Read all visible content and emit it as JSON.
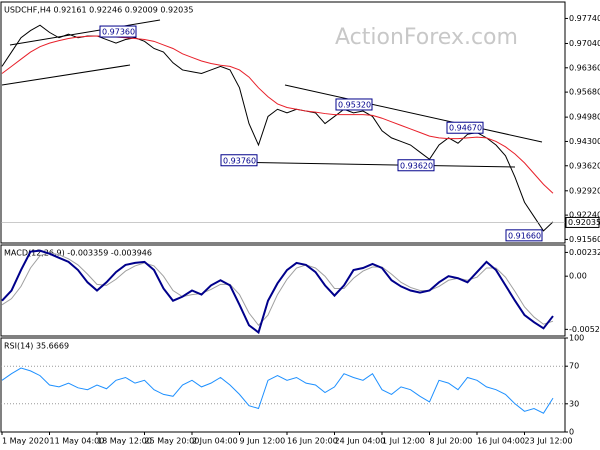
{
  "watermark": "ActionForex.com",
  "chart_data": [
    {
      "type": "line",
      "title": "USDCHF,H4  0.92161 0.92246 0.92009 0.92035",
      "ylim": [
        0.9146,
        0.982
      ],
      "yticks": [
        {
          "value": 0.9774,
          "label": "0.97740"
        },
        {
          "value": 0.9704,
          "label": "0.97040"
        },
        {
          "value": 0.9636,
          "label": "0.96360"
        },
        {
          "value": 0.9568,
          "label": "0.95680"
        },
        {
          "value": 0.9498,
          "label": "0.94980"
        },
        {
          "value": 0.943,
          "label": "0.94300"
        },
        {
          "value": 0.9362,
          "label": "0.93620"
        },
        {
          "value": 0.9292,
          "label": "0.92920"
        },
        {
          "value": 0.9224,
          "label": "0.92240"
        },
        {
          "value": 0.9156,
          "label": "0.91560"
        }
      ],
      "last_price": {
        "value": 0.92035,
        "label": "0.92035"
      },
      "annotations": [
        {
          "value": 0.9736,
          "label": "0.97360"
        },
        {
          "value": 0.9532,
          "label": "0.95320"
        },
        {
          "value": 0.9467,
          "label": "0.94670"
        },
        {
          "value": 0.9376,
          "label": "0.93760"
        },
        {
          "value": 0.9362,
          "label": "0.93620"
        },
        {
          "value": 0.9166,
          "label": "0.91660"
        }
      ],
      "series": [
        {
          "color": "#000000",
          "width": 1,
          "values": [
            0.964,
            0.968,
            0.972,
            0.974,
            0.9755,
            0.9735,
            0.972,
            0.973,
            0.972,
            0.9725,
            0.9725,
            0.9715,
            0.9705,
            0.9715,
            0.972,
            0.971,
            0.969,
            0.968,
            0.965,
            0.963,
            0.9625,
            0.962,
            0.963,
            0.964,
            0.963,
            0.958,
            0.948,
            0.942,
            0.95,
            0.952,
            0.951,
            0.952,
            0.9515,
            0.951,
            0.948,
            0.95,
            0.952,
            0.951,
            0.9515,
            0.95,
            0.946,
            0.944,
            0.943,
            0.942,
            0.94,
            0.938,
            0.942,
            0.944,
            0.9425,
            0.945,
            0.9455,
            0.944,
            0.942,
            0.939,
            0.933,
            0.926,
            0.922,
            0.918,
            0.9205
          ]
        },
        {
          "color": "#e8202a",
          "width": 1,
          "values": [
            0.962,
            0.964,
            0.966,
            0.968,
            0.9695,
            0.9705,
            0.9712,
            0.9718,
            0.9722,
            0.9724,
            0.9725,
            0.9724,
            0.9722,
            0.972,
            0.9718,
            0.9715,
            0.971,
            0.97,
            0.969,
            0.9675,
            0.9665,
            0.9655,
            0.9648,
            0.9643,
            0.964,
            0.963,
            0.961,
            0.958,
            0.9555,
            0.9535,
            0.9525,
            0.952,
            0.9515,
            0.9512,
            0.9508,
            0.9505,
            0.9505,
            0.9505,
            0.9505,
            0.9503,
            0.9495,
            0.9485,
            0.9475,
            0.9465,
            0.9455,
            0.9445,
            0.944,
            0.9438,
            0.9438,
            0.944,
            0.9442,
            0.944,
            0.943,
            0.9415,
            0.9395,
            0.937,
            0.934,
            0.931,
            0.9285
          ]
        }
      ]
    },
    {
      "type": "line",
      "title": "MACD(12,26,9) -0.003359 -0.003946",
      "ylim": [
        -0.00585,
        0.00305
      ],
      "yticks": [
        0.002325,
        {
          "value": 0,
          "label": "0.00"
        },
        -0.005201
      ],
      "series": [
        {
          "color": "#a0a0a0",
          "width": 1,
          "values": [
            -0.0028,
            -0.0022,
            -0.001,
            0.0008,
            0.002,
            0.0023,
            0.0021,
            0.0017,
            0.0011,
            0.0002,
            -0.0008,
            -0.0009,
            -0.0003,
            0.0005,
            0.001,
            0.0013,
            0.001,
            0.0,
            -0.0014,
            -0.002,
            -0.0018,
            -0.0017,
            -0.0013,
            -0.0008,
            -0.0008,
            -0.0018,
            -0.0036,
            -0.0048,
            -0.0038,
            -0.0018,
            -0.0003,
            0.0008,
            0.0011,
            0.0008,
            0.0,
            -0.0012,
            -0.0012,
            -0.0002,
            0.0005,
            0.0009,
            0.0009,
            0.0002,
            -0.0006,
            -0.0011,
            -0.0014,
            -0.0014,
            -0.001,
            -0.0004,
            -0.0002,
            -0.0004,
            -0.0001,
            0.0008,
            0.0008,
            -0.0001,
            -0.0015,
            -0.003,
            -0.004,
            -0.0047,
            -0.0044
          ]
        },
        {
          "color": "#00008b",
          "width": 2,
          "values": [
            -0.0024,
            -0.0014,
            0.0006,
            0.0024,
            0.0025,
            0.0022,
            0.0018,
            0.0014,
            0.0006,
            -0.0006,
            -0.0014,
            -0.0006,
            0.0004,
            0.0011,
            0.0013,
            0.0014,
            0.0006,
            -0.0012,
            -0.0024,
            -0.002,
            -0.0014,
            -0.0018,
            -0.0009,
            -0.0004,
            -0.0009,
            -0.0028,
            -0.0048,
            -0.0055,
            -0.0024,
            -0.0007,
            0.0006,
            0.0013,
            0.0011,
            0.0004,
            -0.0009,
            -0.0019,
            -0.0009,
            0.0006,
            0.0008,
            0.0012,
            0.0008,
            -0.0004,
            -0.001,
            -0.0014,
            -0.0016,
            -0.0014,
            -0.0006,
            0.0,
            -0.0002,
            -0.0006,
            0.0004,
            0.0014,
            0.0006,
            -0.0009,
            -0.0024,
            -0.0038,
            -0.0045,
            -0.0051,
            -0.0039
          ]
        }
      ]
    },
    {
      "type": "line",
      "title": "RSI(14) 35.6669",
      "ylim": [
        0,
        100
      ],
      "yticks": [
        100,
        70,
        30,
        0
      ],
      "levels": [
        70,
        30
      ],
      "categories": [
        "1 May 2020",
        null,
        null,
        null,
        null,
        "11 May 04:00",
        null,
        null,
        null,
        null,
        "18 May 12:00",
        null,
        null,
        null,
        null,
        "25 May 20:00",
        null,
        null,
        null,
        null,
        "2 Jun 04:00",
        null,
        null,
        null,
        null,
        "9 Jun 12:00",
        null,
        null,
        null,
        null,
        "16 Jun 20:00",
        null,
        null,
        null,
        null,
        "24 Jun 04:00",
        null,
        null,
        null,
        null,
        "1 Jul 12:00",
        null,
        null,
        null,
        null,
        "8 Jul 20:00",
        null,
        null,
        null,
        null,
        "16 Jul 04:00",
        null,
        null,
        null,
        null,
        "23 Jul 12:00",
        null,
        null,
        null
      ],
      "series": [
        {
          "color": "#1e90ff",
          "width": 1,
          "values": [
            55,
            62,
            68,
            65,
            60,
            50,
            48,
            52,
            47,
            45,
            50,
            46,
            55,
            58,
            52,
            55,
            45,
            40,
            38,
            50,
            55,
            48,
            52,
            58,
            50,
            40,
            28,
            25,
            55,
            60,
            55,
            58,
            52,
            50,
            42,
            48,
            62,
            58,
            55,
            62,
            45,
            40,
            48,
            45,
            38,
            32,
            55,
            52,
            45,
            58,
            55,
            48,
            45,
            40,
            30,
            22,
            25,
            20,
            36
          ]
        }
      ]
    }
  ]
}
